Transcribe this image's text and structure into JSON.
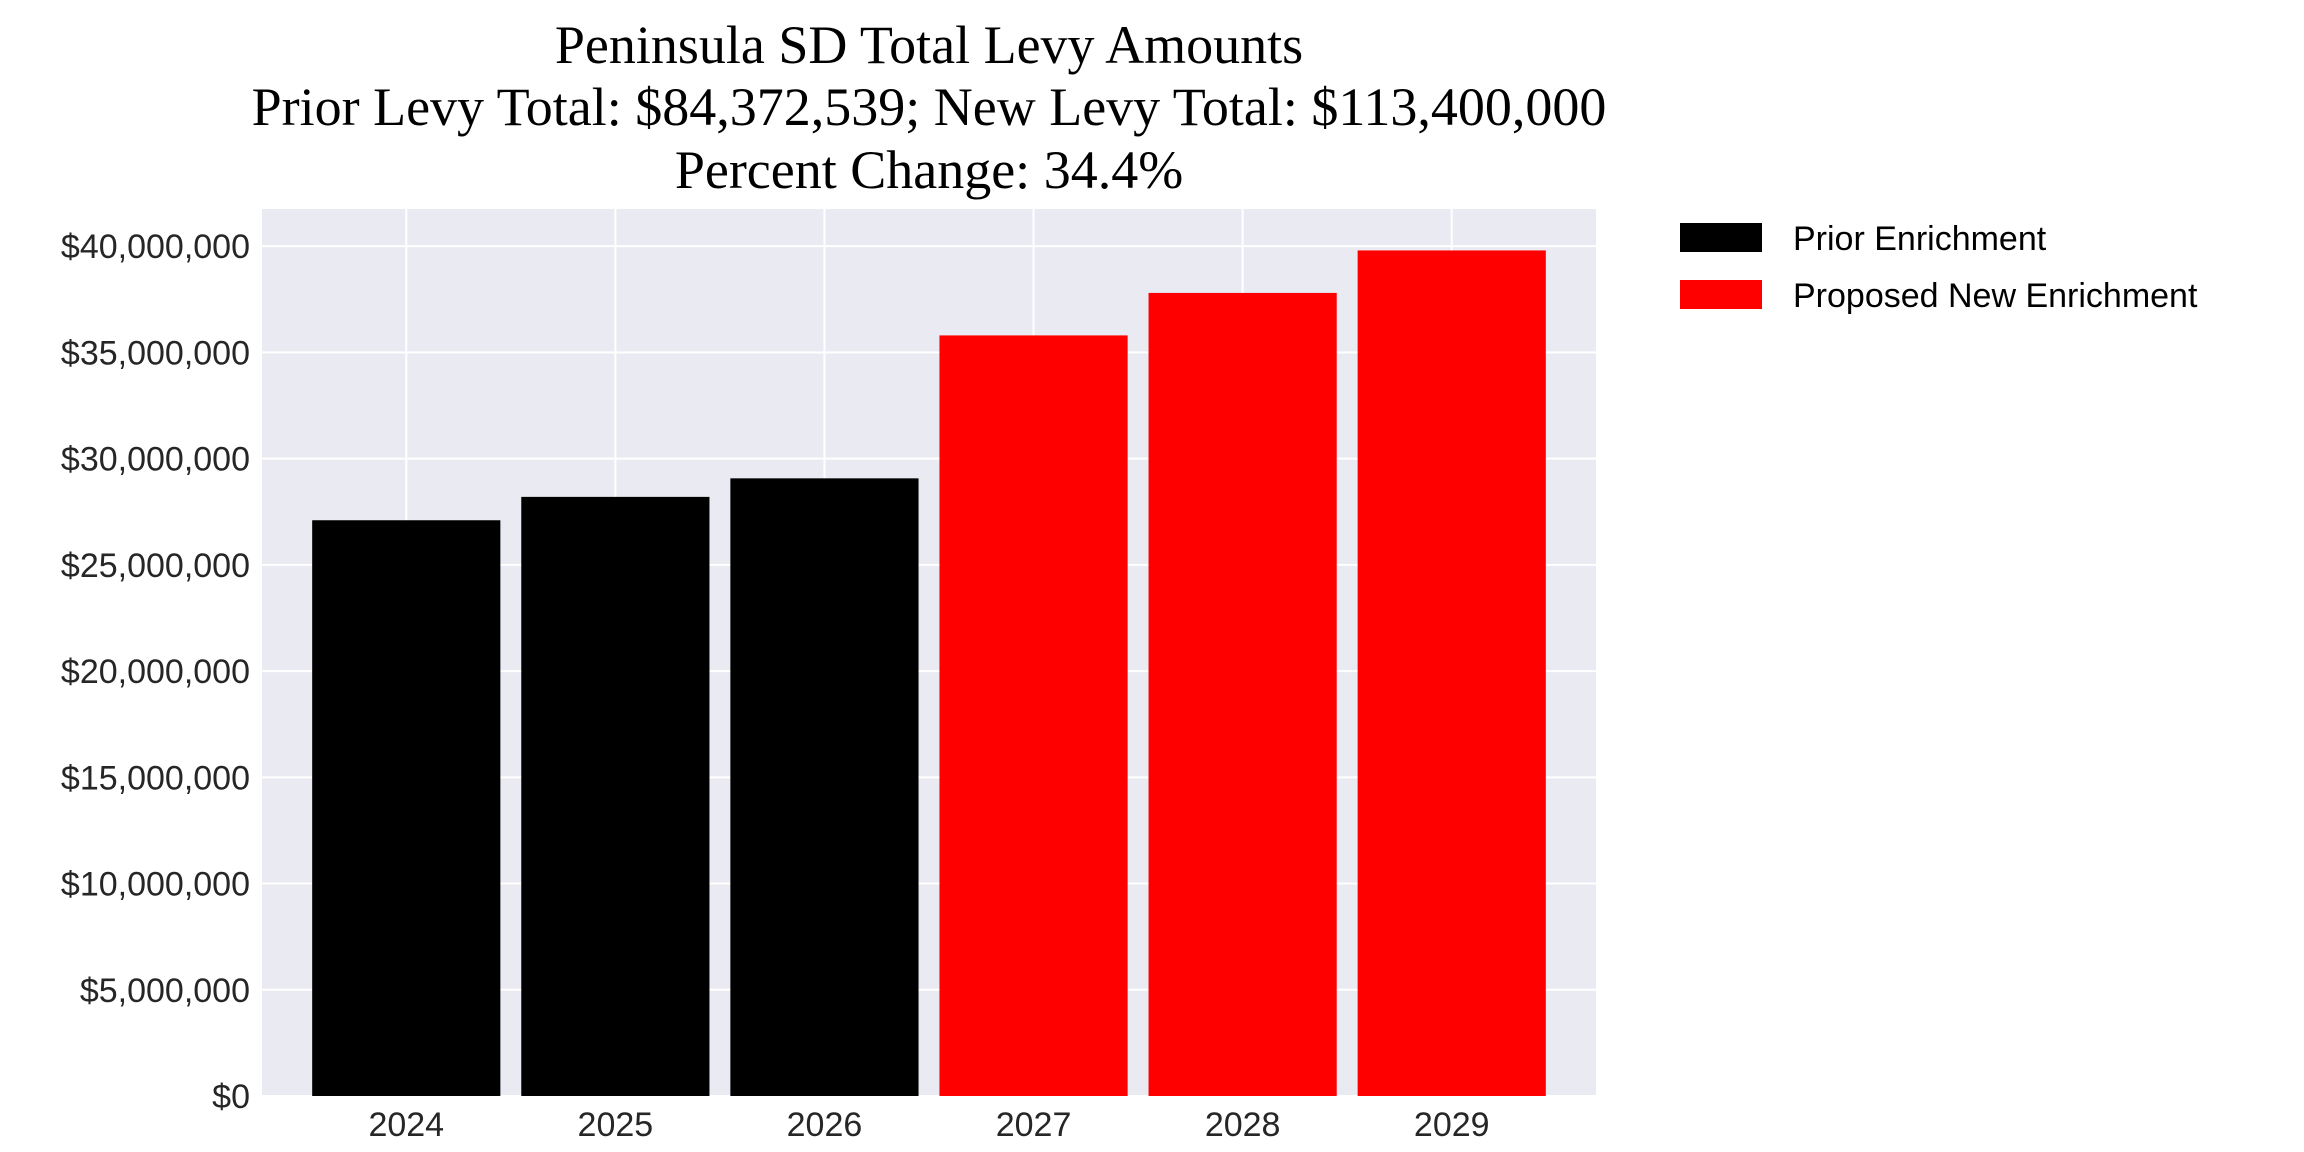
{
  "chart_data": {
    "type": "bar",
    "title": [
      "Peninsula SD Total Levy Amounts",
      "Prior Levy Total:  $84,372,539; New Levy Total: $113,400,000",
      "Percent Change: 34.4%"
    ],
    "xlabel": "",
    "ylabel": "",
    "categories": [
      "2024",
      "2025",
      "2026",
      "2027",
      "2028",
      "2029"
    ],
    "series": [
      {
        "name": "Prior Enrichment",
        "color": "#000000",
        "values": [
          27100000,
          28200000,
          29072539,
          null,
          null,
          null
        ]
      },
      {
        "name": "Proposed New Enrichment",
        "color": "#ff0000",
        "values": [
          null,
          null,
          null,
          35800000,
          37800000,
          39800000
        ]
      }
    ],
    "ylim": [
      0,
      41750000
    ],
    "yticks": [
      0,
      5000000,
      10000000,
      15000000,
      20000000,
      25000000,
      30000000,
      35000000,
      40000000
    ],
    "ytick_labels": [
      "$0",
      "$5,000,000",
      "$10,000,000",
      "$15,000,000",
      "$20,000,000",
      "$25,000,000",
      "$30,000,000",
      "$35,000,000",
      "$40,000,000"
    ],
    "grid": true,
    "background": "#eaeaf2",
    "legend_position": "outside-top-right"
  }
}
